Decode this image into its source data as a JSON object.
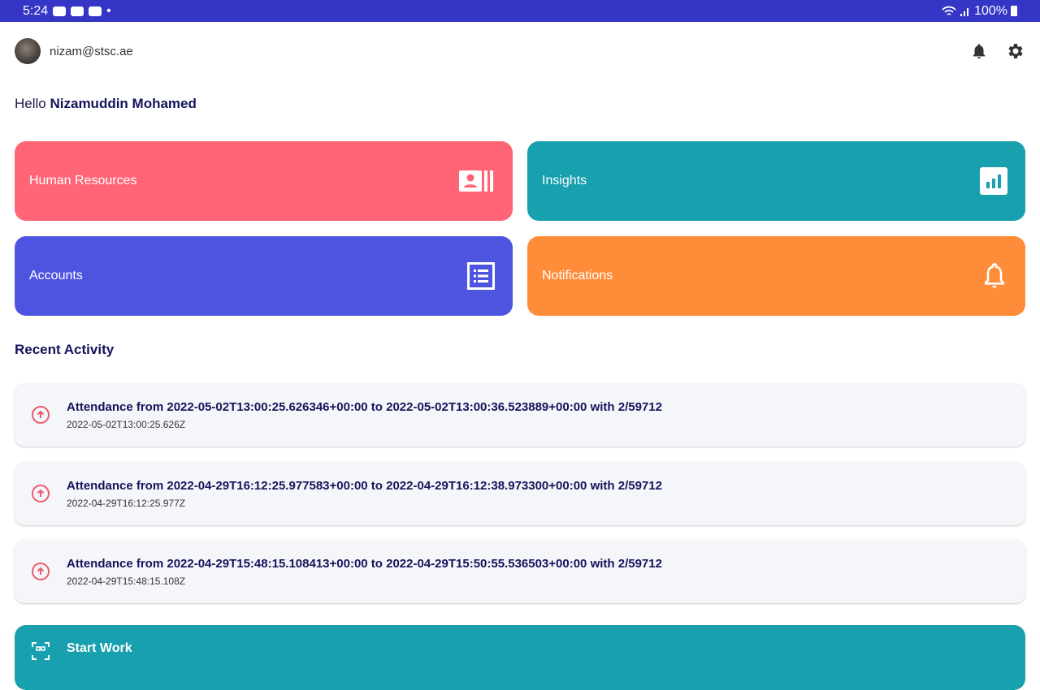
{
  "status_bar": {
    "time": "5:24",
    "battery": "100%"
  },
  "header": {
    "email": "nizam@stsc.ae"
  },
  "greeting": {
    "prefix": "Hello",
    "name": "Nizamuddin Mohamed"
  },
  "tiles": [
    {
      "label": "Human Resources",
      "color": "#ff6577",
      "icon": "contact-card-icon"
    },
    {
      "label": "Insights",
      "color": "#18a0ae",
      "icon": "bar-chart-icon"
    },
    {
      "label": "Accounts",
      "color": "#4d55e0",
      "icon": "list-icon"
    },
    {
      "label": "Notifications",
      "color": "#ff8c38",
      "icon": "bell-icon"
    }
  ],
  "recent": {
    "title": "Recent Activity",
    "items": [
      {
        "title": "Attendance from 2022-05-02T13:00:25.626346+00:00 to 2022-05-02T13:00:36.523889+00:00 with 2/59712",
        "time": "2022-05-02T13:00:25.626Z"
      },
      {
        "title": "Attendance from 2022-04-29T16:12:25.977583+00:00 to 2022-04-29T16:12:38.973300+00:00 with 2/59712",
        "time": "2022-04-29T16:12:25.977Z"
      },
      {
        "title": "Attendance from 2022-04-29T15:48:15.108413+00:00 to 2022-04-29T15:50:55.536503+00:00 with 2/59712",
        "time": "2022-04-29T15:48:15.108Z"
      }
    ]
  },
  "start_button": {
    "label": "Start Work"
  }
}
